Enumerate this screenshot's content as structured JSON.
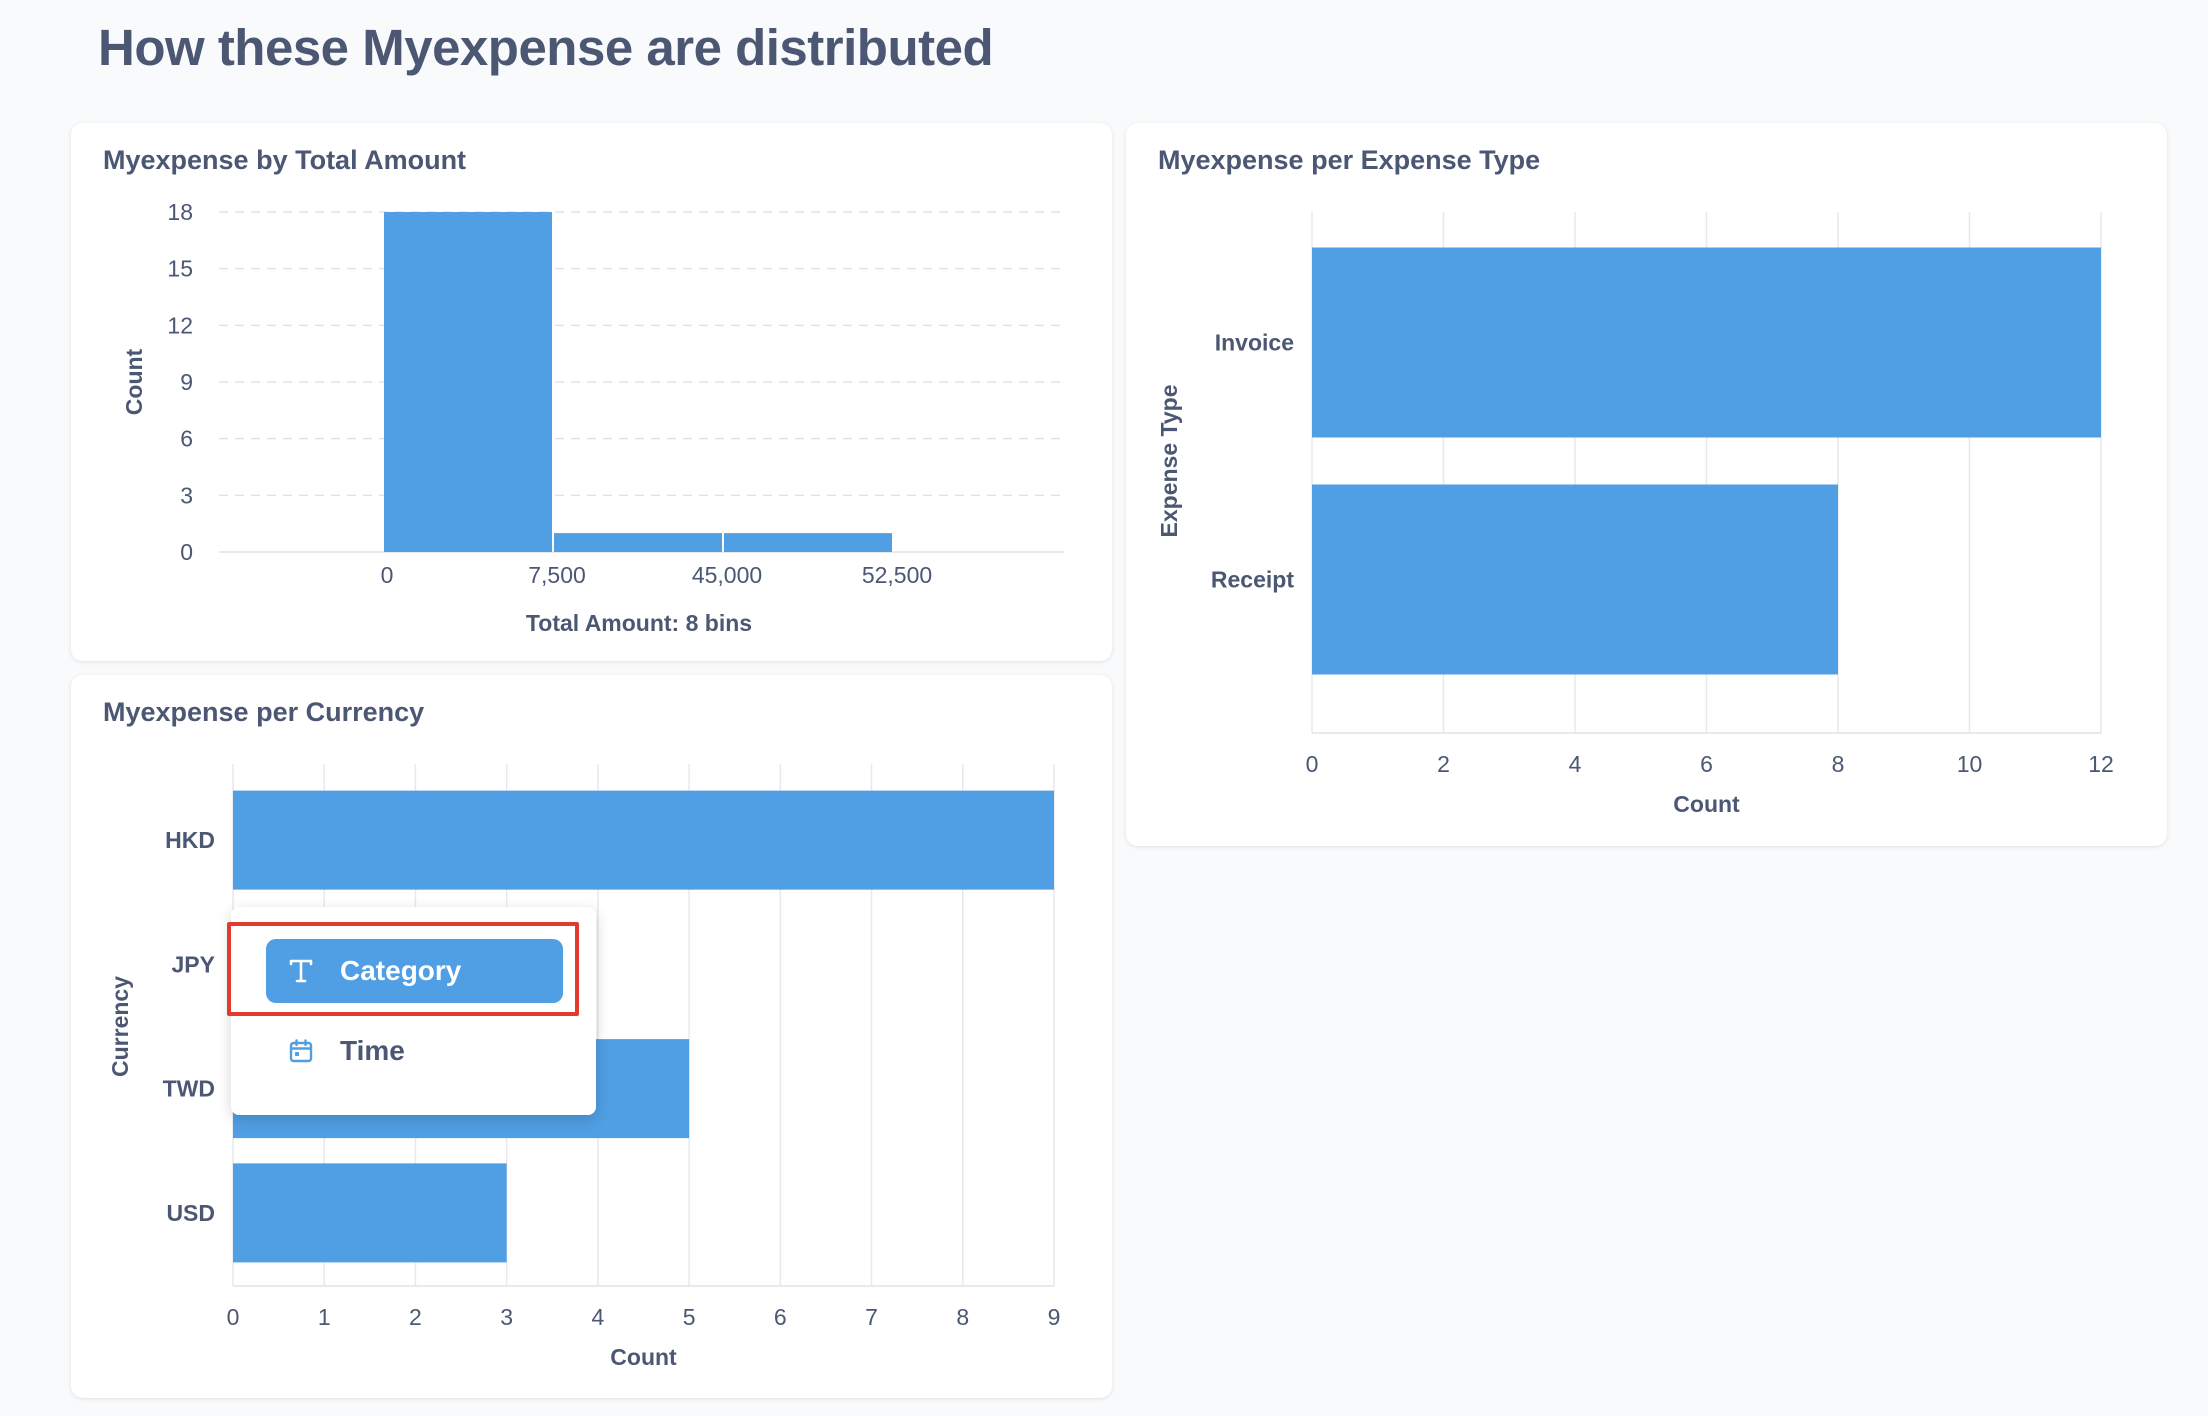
{
  "page": {
    "title": "How these Myexpense are distributed"
  },
  "chart_data": [
    {
      "type": "bar",
      "title": "Myexpense by Total Amount",
      "xlabel": "Total Amount: 8 bins",
      "ylabel": "Count",
      "x_tick_labels": [
        "0",
        "7,500",
        "45,000",
        "52,500"
      ],
      "y_ticks": [
        0,
        3,
        6,
        9,
        12,
        15,
        18
      ],
      "ylim": [
        0,
        18
      ],
      "bins": [
        {
          "from": "0",
          "to": "7,500",
          "value": 18
        },
        {
          "from": "7,500",
          "to": "45,000",
          "value": 1
        },
        {
          "from": "45,000",
          "to": "52,500",
          "value": 1
        }
      ],
      "grid": true,
      "color": "#509ee3"
    },
    {
      "type": "bar",
      "orientation": "horizontal",
      "title": "Myexpense per Expense Type",
      "xlabel": "Count",
      "ylabel": "Expense Type",
      "categories": [
        "Invoice",
        "Receipt"
      ],
      "values": [
        12,
        8
      ],
      "x_ticks": [
        0,
        2,
        4,
        6,
        8,
        10,
        12
      ],
      "xlim": [
        0,
        12
      ],
      "grid": true,
      "color": "#509ee3"
    },
    {
      "type": "bar",
      "orientation": "horizontal",
      "title": "Myexpense per Currency",
      "xlabel": "Count",
      "ylabel": "Currency",
      "categories": [
        "HKD",
        "JPY",
        "TWD",
        "USD"
      ],
      "values": [
        9,
        null,
        5,
        3
      ],
      "x_ticks": [
        0,
        1,
        2,
        3,
        4,
        5,
        6,
        7,
        8,
        9
      ],
      "xlim": [
        0,
        9
      ],
      "grid": true,
      "color": "#509ee3"
    }
  ],
  "popover": {
    "items": [
      {
        "label": "Category",
        "icon": "text-type-icon",
        "active": true
      },
      {
        "label": "Time",
        "icon": "calendar-icon",
        "active": false
      }
    ],
    "highlight_color": "#e03b2f"
  }
}
